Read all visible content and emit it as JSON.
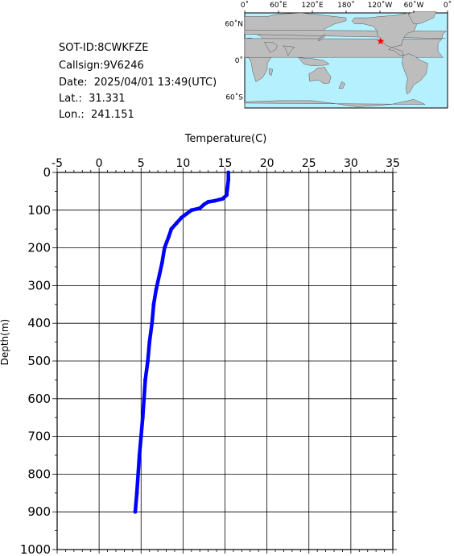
{
  "info": {
    "sot_id": "SOT-ID:8CWKFZE",
    "callsign": "Callsign:9V6246",
    "date": "Date:  2025/04/01 13:49(UTC)",
    "lat": "Lat.:  31.331",
    "lon": "Lon.:  241.151"
  },
  "map": {
    "top_labels": [
      "0˚",
      "60˚E",
      "120˚E",
      "180˚",
      "120˚W",
      "60˚W",
      "0˚"
    ],
    "side_labels": [
      "60˚N",
      "0˚",
      "60˚S"
    ],
    "ocean_color": "#b5f0ff",
    "land_color": "#bdbdbd",
    "marker_color": "#ff0000",
    "marker_lon": 241.151,
    "marker_lat": 31.331
  },
  "chart_data": {
    "type": "line",
    "title": "",
    "xlabel": "Temperature(C)",
    "ylabel": "Depth(m)",
    "xlim": [
      -5,
      35
    ],
    "ylim": [
      0,
      1000
    ],
    "y_inverted": true,
    "x_position": "top",
    "x_ticks": [
      -5,
      0,
      5,
      10,
      15,
      20,
      25,
      30,
      35
    ],
    "y_ticks": [
      0,
      100,
      200,
      300,
      400,
      500,
      600,
      700,
      800,
      900,
      1000
    ],
    "grid": true,
    "series": [
      {
        "color": "#0000ff",
        "x": [
          15.4,
          15.4,
          15.3,
          15.2,
          14.7,
          13.8,
          13.0,
          12.5,
          12.0,
          11.0,
          10.4,
          9.8,
          9.2,
          8.6,
          8.3,
          7.8,
          7.5,
          7.2,
          6.8,
          6.5,
          6.3,
          6.0,
          5.8,
          5.5,
          5.2,
          4.8,
          4.5,
          4.3
        ],
        "y": [
          0,
          20,
          40,
          60,
          70,
          75,
          78,
          85,
          95,
          100,
          110,
          120,
          135,
          150,
          170,
          200,
          240,
          270,
          310,
          350,
          400,
          450,
          500,
          550,
          650,
          750,
          850,
          900
        ]
      }
    ]
  }
}
